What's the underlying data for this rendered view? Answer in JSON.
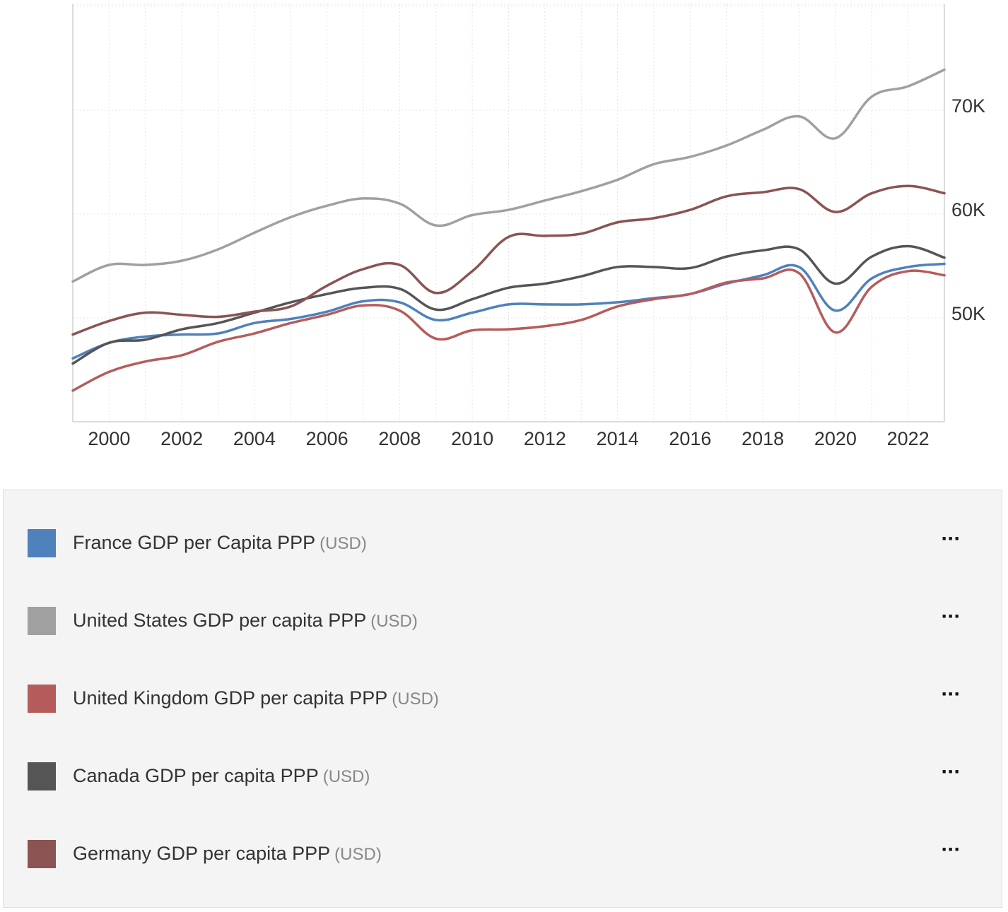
{
  "chart_data": {
    "type": "line",
    "title": "",
    "xlabel": "",
    "ylabel": "",
    "x": [
      1999,
      2000,
      2001,
      2002,
      2003,
      2004,
      2005,
      2006,
      2007,
      2008,
      2009,
      2010,
      2011,
      2012,
      2013,
      2014,
      2015,
      2016,
      2017,
      2018,
      2019,
      2020,
      2021,
      2022,
      2023
    ],
    "xlim": [
      1999,
      2023
    ],
    "ylim": [
      40000,
      80200
    ],
    "x_ticks": [
      "2000",
      "2002",
      "2004",
      "2006",
      "2008",
      "2010",
      "2012",
      "2014",
      "2016",
      "2018",
      "2020",
      "2022"
    ],
    "y_ticks": [
      {
        "value": 50000,
        "label": "50K"
      },
      {
        "value": 60000,
        "label": "60K"
      },
      {
        "value": 70000,
        "label": "70K"
      }
    ],
    "y_axis_position": "right",
    "grid": true,
    "legend_position": "bottom",
    "series": [
      {
        "name": "France GDP per Capita PPP",
        "unit": "(USD)",
        "color": "#4f81bd",
        "values": [
          46100,
          47600,
          48200,
          48400,
          48500,
          49500,
          49900,
          50600,
          51600,
          51500,
          49800,
          50500,
          51300,
          51300,
          51300,
          51500,
          51900,
          52300,
          53300,
          54100,
          54900,
          50700,
          53800,
          54900,
          55200
        ]
      },
      {
        "name": "United States GDP per capita PPP",
        "unit": "(USD)",
        "color": "#a0a0a0",
        "values": [
          53500,
          55100,
          55100,
          55500,
          56600,
          58200,
          59700,
          60800,
          61500,
          61000,
          58900,
          59900,
          60400,
          61300,
          62200,
          63300,
          64800,
          65500,
          66600,
          68100,
          69400,
          67300,
          71300,
          72300,
          73900
        ]
      },
      {
        "name": "United Kingdom GDP per capita PPP",
        "unit": "(USD)",
        "color": "#b65b5b",
        "values": [
          43000,
          44800,
          45800,
          46400,
          47700,
          48500,
          49500,
          50300,
          51200,
          50700,
          48000,
          48800,
          48900,
          49200,
          49800,
          51100,
          51800,
          52300,
          53400,
          53800,
          54300,
          48600,
          53000,
          54500,
          54100
        ]
      },
      {
        "name": "Canada GDP per capita PPP",
        "unit": "(USD)",
        "color": "#555555",
        "values": [
          45600,
          47600,
          47900,
          48900,
          49500,
          50500,
          51500,
          52300,
          52900,
          52800,
          50800,
          51800,
          52900,
          53300,
          54000,
          54900,
          54900,
          54800,
          55900,
          56500,
          56600,
          53300,
          55900,
          56900,
          55800
        ]
      },
      {
        "name": "Germany GDP per capita PPP",
        "unit": "(USD)",
        "color": "#8b5352",
        "values": [
          48400,
          49700,
          50500,
          50300,
          50100,
          50600,
          51100,
          53100,
          54700,
          55100,
          52400,
          54500,
          57800,
          57900,
          58100,
          59200,
          59600,
          60400,
          61700,
          62100,
          62400,
          60200,
          62000,
          62700,
          62000
        ]
      }
    ]
  }
}
